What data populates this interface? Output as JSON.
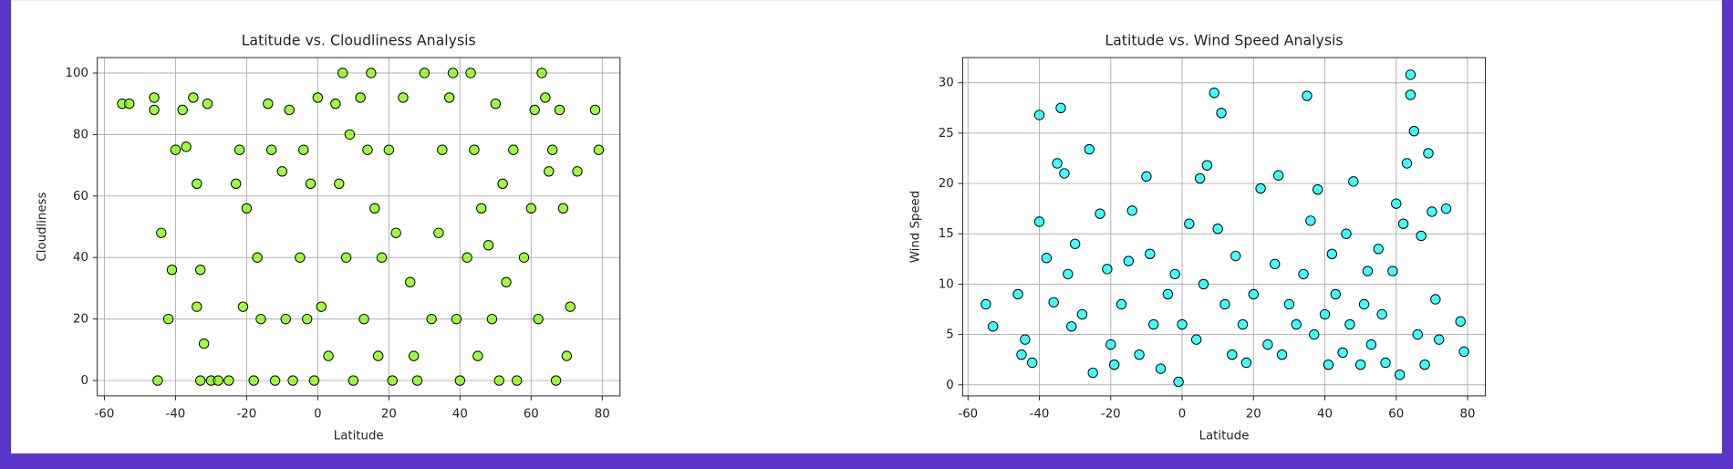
{
  "chart_data": [
    {
      "type": "scatter",
      "title": "Latitude vs. Cloudliness Analysis",
      "xlabel": "Latitude",
      "ylabel": "Cloudliness",
      "color": "#7cfc00",
      "edgecolor": "#000000",
      "grid": true,
      "xlim": [
        -62,
        85
      ],
      "ylim": [
        -5,
        105
      ],
      "xticks": [
        -60,
        -40,
        -20,
        0,
        20,
        40,
        60,
        80
      ],
      "yticks": [
        0,
        20,
        40,
        60,
        80,
        100
      ],
      "x": [
        -55,
        -53,
        -46,
        -46,
        -45,
        -44,
        -42,
        -41,
        -40,
        -38,
        -37,
        -35,
        -34,
        -34,
        -33,
        -33,
        -32,
        -31,
        -30,
        -28,
        -25,
        -23,
        -22,
        -21,
        -20,
        -18,
        -17,
        -16,
        -14,
        -13,
        -12,
        -10,
        -9,
        -8,
        -7,
        -5,
        -4,
        -3,
        -2,
        -1,
        0,
        1,
        3,
        5,
        6,
        7,
        8,
        9,
        10,
        12,
        13,
        14,
        15,
        16,
        17,
        18,
        20,
        21,
        22,
        24,
        26,
        27,
        28,
        30,
        32,
        34,
        35,
        37,
        38,
        39,
        40,
        42,
        43,
        44,
        45,
        46,
        48,
        49,
        50,
        51,
        52,
        53,
        55,
        56,
        58,
        60,
        61,
        62,
        63,
        64,
        65,
        66,
        67,
        68,
        69,
        70,
        71,
        73,
        78,
        79
      ],
      "values": [
        90,
        90,
        92,
        88,
        0,
        48,
        20,
        36,
        75,
        88,
        76,
        92,
        64,
        24,
        36,
        0,
        12,
        90,
        0,
        0,
        0,
        64,
        75,
        24,
        56,
        0,
        40,
        20,
        90,
        75,
        0,
        68,
        20,
        88,
        0,
        40,
        75,
        20,
        64,
        0,
        92,
        24,
        8,
        90,
        64,
        100,
        40,
        80,
        0,
        92,
        20,
        75,
        100,
        56,
        8,
        40,
        75,
        0,
        48,
        92,
        32,
        8,
        0,
        100,
        20,
        48,
        75,
        92,
        100,
        20,
        0,
        40,
        100,
        75,
        8,
        56,
        44,
        20,
        90,
        0,
        64,
        32,
        75,
        0,
        40,
        56,
        88,
        20,
        100,
        92,
        68,
        75,
        0,
        88,
        56,
        8,
        24,
        68,
        88,
        75
      ]
    },
    {
      "type": "scatter",
      "title": "Latitude vs. Wind Speed Analysis",
      "xlabel": "Latitude",
      "ylabel": "Wind Speed",
      "color": "#00ffff",
      "edgecolor": "#000000",
      "grid": true,
      "xlim": [
        -61.5,
        85
      ],
      "ylim": [
        -1.1,
        32.5
      ],
      "xticks": [
        -60,
        -40,
        -20,
        0,
        20,
        40,
        60,
        80
      ],
      "yticks": [
        0,
        5,
        10,
        15,
        20,
        25,
        30
      ],
      "x": [
        -55,
        -53,
        -46,
        -45,
        -44,
        -42,
        -40,
        -40,
        -38,
        -36,
        -35,
        -34,
        -33,
        -32,
        -31,
        -30,
        -28,
        -26,
        -25,
        -23,
        -21,
        -20,
        -19,
        -17,
        -15,
        -14,
        -12,
        -10,
        -9,
        -8,
        -6,
        -4,
        -2,
        -1,
        0,
        2,
        4,
        5,
        6,
        7,
        9,
        10,
        11,
        12,
        14,
        15,
        17,
        18,
        20,
        22,
        24,
        26,
        27,
        28,
        30,
        32,
        34,
        35,
        36,
        37,
        38,
        40,
        41,
        42,
        43,
        45,
        46,
        47,
        48,
        50,
        51,
        52,
        53,
        55,
        56,
        57,
        59,
        60,
        61,
        62,
        63,
        64,
        64,
        65,
        66,
        67,
        68,
        69,
        70,
        71,
        72,
        74,
        78,
        79
      ],
      "values": [
        8,
        5.8,
        9,
        3,
        4.5,
        2.2,
        26.8,
        16.2,
        12.6,
        8.2,
        22,
        27.5,
        21,
        11,
        5.8,
        14,
        7,
        23.4,
        1.2,
        17,
        11.5,
        4,
        2,
        8,
        12.3,
        17.3,
        3,
        20.7,
        13,
        6,
        1.6,
        9,
        11,
        0.3,
        6,
        16,
        4.5,
        20.5,
        10,
        21.8,
        29,
        15.5,
        27,
        8,
        3,
        12.8,
        6,
        2.2,
        9,
        19.5,
        4,
        12,
        20.8,
        3,
        8,
        6,
        11,
        28.7,
        16.3,
        5,
        19.4,
        7,
        2,
        13,
        9,
        3.2,
        15,
        6,
        20.2,
        2,
        8,
        11.3,
        4,
        13.5,
        7,
        2.2,
        11.3,
        18,
        1,
        16,
        22,
        30.8,
        28.8,
        25.2,
        5,
        14.8,
        2,
        23,
        17.2,
        8.5,
        4.5,
        17.5,
        6.3,
        3.3
      ]
    }
  ]
}
